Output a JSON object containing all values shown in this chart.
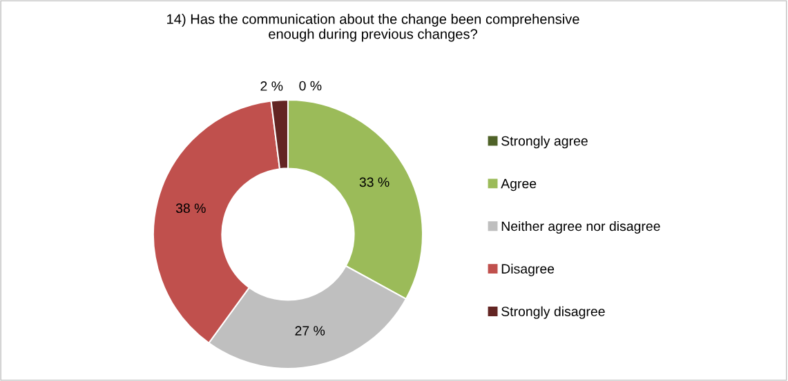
{
  "chart_data": {
    "type": "donut",
    "title": "14) Has the communication about the change been comprehensive\nenough during previous changes?",
    "categories": [
      "Strongly agree",
      "Agree",
      "Neither agree nor disagree",
      "Disagree",
      "Strongly disagree"
    ],
    "values": [
      0,
      33,
      27,
      38,
      2
    ],
    "colors": [
      "#4f6228",
      "#9bbb59",
      "#bfbfbf",
      "#c0504d",
      "#632523"
    ],
    "value_labels": [
      "0 %",
      "33 %",
      "27 %",
      "38 %",
      "2 %"
    ],
    "legend": "right"
  }
}
